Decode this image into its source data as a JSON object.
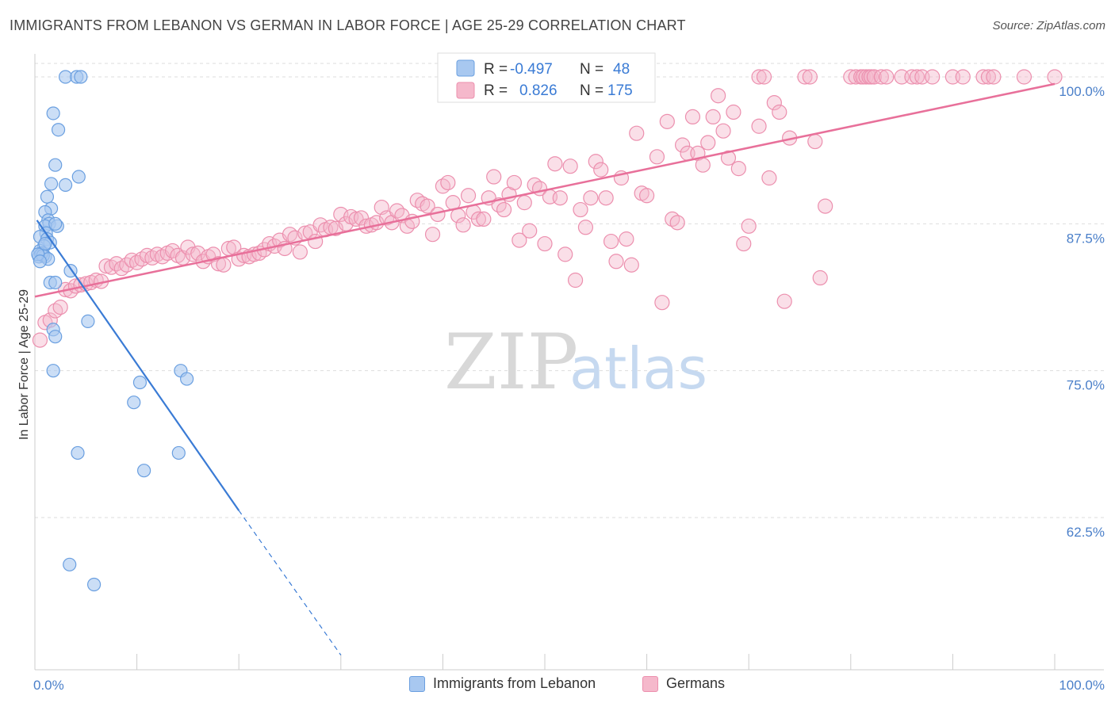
{
  "header": {
    "title": "IMMIGRANTS FROM LEBANON VS GERMAN IN LABOR FORCE | AGE 25-29 CORRELATION CHART",
    "source": "Source: ZipAtlas.com"
  },
  "watermark": {
    "zip": "ZIP",
    "atlas": "atlas"
  },
  "colors": {
    "blue_fill": "#a8c8f0",
    "blue_stroke": "#6a9fe0",
    "blue_line": "#3a7bd5",
    "pink_fill": "#f5b8cb",
    "pink_stroke": "#ec8fae",
    "pink_line": "#e8709a",
    "grid": "#dddddd",
    "tick_text": "#4a7fc9"
  },
  "legend": {
    "blue": {
      "r_label": "R =",
      "r_value": "-0.497",
      "n_label": "N =",
      "n_value": "48"
    },
    "pink": {
      "r_label": "R =",
      "r_value": "0.826",
      "n_label": "N =",
      "n_value": "175"
    }
  },
  "chart_data": {
    "type": "scatter",
    "title": "IMMIGRANTS FROM LEBANON VS GERMAN IN LABOR FORCE | AGE 25-29 CORRELATION CHART",
    "xlabel": "",
    "ylabel": "In Labor Force | Age 25-29",
    "xlim": [
      0,
      100
    ],
    "ylim": [
      50,
      100
    ],
    "x_tick_labels": [
      "0.0%",
      "100.0%"
    ],
    "y_ticks": [
      62.5,
      75.0,
      87.5,
      100.0
    ],
    "y_tick_labels": [
      "62.5%",
      "75.0%",
      "87.5%",
      "100.0%"
    ],
    "grid": true,
    "legend_position": "top-center",
    "series": [
      {
        "name": "Immigrants from Lebanon",
        "color": "#a8c8f0",
        "trend": {
          "x": [
            0.2,
            20.0
          ],
          "y": [
            87.8,
            63.1
          ],
          "extend_to": [
            30.0,
            50.8
          ]
        },
        "points": [
          [
            3.0,
            100.0
          ],
          [
            4.1,
            100.0
          ],
          [
            4.5,
            100.0
          ],
          [
            1.8,
            96.9
          ],
          [
            2.3,
            95.5
          ],
          [
            2.0,
            92.5
          ],
          [
            4.3,
            91.5
          ],
          [
            1.6,
            90.9
          ],
          [
            3.0,
            90.8
          ],
          [
            1.2,
            89.8
          ],
          [
            1.6,
            88.8
          ],
          [
            1.0,
            88.5
          ],
          [
            1.3,
            87.8
          ],
          [
            1.4,
            87.5
          ],
          [
            2.2,
            87.3
          ],
          [
            1.0,
            87.3
          ],
          [
            2.0,
            87.5
          ],
          [
            1.1,
            86.7
          ],
          [
            0.5,
            86.4
          ],
          [
            1.2,
            86.2
          ],
          [
            1.5,
            85.9
          ],
          [
            0.9,
            85.6
          ],
          [
            0.5,
            85.2
          ],
          [
            0.7,
            85.0
          ],
          [
            0.4,
            84.7
          ],
          [
            1.0,
            84.7
          ],
          [
            0.6,
            84.9
          ],
          [
            0.8,
            84.8
          ],
          [
            1.3,
            84.5
          ],
          [
            0.3,
            84.9
          ],
          [
            0.5,
            84.3
          ],
          [
            3.5,
            83.5
          ],
          [
            1.5,
            82.5
          ],
          [
            2.0,
            82.5
          ],
          [
            5.2,
            79.2
          ],
          [
            1.8,
            78.5
          ],
          [
            2.0,
            77.9
          ],
          [
            1.8,
            75.0
          ],
          [
            10.3,
            74.0
          ],
          [
            14.3,
            75.0
          ],
          [
            14.9,
            74.3
          ],
          [
            9.7,
            72.3
          ],
          [
            4.2,
            68.0
          ],
          [
            14.1,
            68.0
          ],
          [
            10.7,
            66.5
          ],
          [
            3.4,
            58.5
          ],
          [
            5.8,
            56.8
          ],
          [
            1.0,
            85.8
          ]
        ]
      },
      {
        "name": "Germans",
        "color": "#f5b8cb",
        "trend": {
          "x": [
            0.0,
            100.0
          ],
          "y": [
            81.3,
            99.4
          ]
        },
        "points": [
          [
            71.0,
            100.0
          ],
          [
            71.5,
            100.0
          ],
          [
            75.5,
            100.0
          ],
          [
            76.0,
            100.0
          ],
          [
            80.0,
            100.0
          ],
          [
            80.5,
            100.0
          ],
          [
            81.0,
            100.0
          ],
          [
            81.2,
            100.0
          ],
          [
            81.5,
            100.0
          ],
          [
            81.8,
            100.0
          ],
          [
            82.0,
            100.0
          ],
          [
            82.3,
            100.0
          ],
          [
            83.0,
            100.0
          ],
          [
            83.5,
            100.0
          ],
          [
            85.0,
            100.0
          ],
          [
            86.0,
            100.0
          ],
          [
            86.5,
            100.0
          ],
          [
            87.0,
            100.0
          ],
          [
            88.0,
            100.0
          ],
          [
            90.0,
            100.0
          ],
          [
            91.0,
            100.0
          ],
          [
            93.0,
            100.0
          ],
          [
            93.5,
            100.0
          ],
          [
            94.0,
            100.0
          ],
          [
            97.0,
            100.0
          ],
          [
            100.0,
            100.0
          ],
          [
            0.5,
            77.6
          ],
          [
            1.0,
            79.1
          ],
          [
            1.5,
            79.3
          ],
          [
            2.0,
            80.1
          ],
          [
            2.5,
            80.4
          ],
          [
            3.0,
            81.9
          ],
          [
            3.5,
            81.8
          ],
          [
            4.0,
            82.2
          ],
          [
            4.5,
            82.3
          ],
          [
            5.0,
            82.4
          ],
          [
            5.5,
            82.5
          ],
          [
            6.0,
            82.7
          ],
          [
            6.5,
            82.6
          ],
          [
            7.0,
            83.9
          ],
          [
            7.5,
            83.8
          ],
          [
            8.0,
            84.1
          ],
          [
            8.5,
            83.7
          ],
          [
            9.0,
            84.0
          ],
          [
            9.5,
            84.4
          ],
          [
            10.0,
            84.2
          ],
          [
            10.5,
            84.5
          ],
          [
            11.0,
            84.8
          ],
          [
            11.5,
            84.6
          ],
          [
            12.0,
            84.9
          ],
          [
            12.5,
            84.7
          ],
          [
            13.0,
            85.0
          ],
          [
            13.5,
            85.2
          ],
          [
            14.0,
            84.8
          ],
          [
            14.5,
            84.6
          ],
          [
            15.0,
            85.5
          ],
          [
            15.5,
            84.9
          ],
          [
            16.0,
            85.0
          ],
          [
            16.5,
            84.3
          ],
          [
            17.0,
            84.7
          ],
          [
            17.5,
            84.9
          ],
          [
            18.0,
            84.1
          ],
          [
            18.5,
            84.0
          ],
          [
            19.0,
            85.4
          ],
          [
            19.5,
            85.5
          ],
          [
            20.0,
            84.5
          ],
          [
            20.5,
            84.8
          ],
          [
            21.0,
            84.7
          ],
          [
            21.5,
            84.9
          ],
          [
            22.0,
            85.0
          ],
          [
            22.5,
            85.3
          ],
          [
            23.0,
            85.8
          ],
          [
            23.5,
            85.6
          ],
          [
            24.0,
            86.1
          ],
          [
            24.5,
            85.4
          ],
          [
            25.0,
            86.6
          ],
          [
            25.5,
            86.3
          ],
          [
            26.0,
            85.1
          ],
          [
            26.5,
            86.7
          ],
          [
            27.0,
            86.8
          ],
          [
            27.5,
            86.0
          ],
          [
            28.0,
            87.4
          ],
          [
            28.5,
            87.0
          ],
          [
            29.0,
            87.2
          ],
          [
            29.5,
            87.1
          ],
          [
            30.0,
            88.3
          ],
          [
            30.5,
            87.5
          ],
          [
            31.0,
            88.1
          ],
          [
            31.5,
            87.9
          ],
          [
            32.0,
            88.0
          ],
          [
            32.5,
            87.3
          ],
          [
            33.0,
            87.4
          ],
          [
            33.5,
            87.6
          ],
          [
            34.0,
            88.9
          ],
          [
            34.5,
            88.0
          ],
          [
            35.0,
            87.6
          ],
          [
            35.5,
            88.6
          ],
          [
            36.0,
            88.2
          ],
          [
            36.5,
            87.3
          ],
          [
            37.0,
            87.7
          ],
          [
            37.5,
            89.5
          ],
          [
            38.0,
            89.2
          ],
          [
            38.5,
            89.0
          ],
          [
            39.0,
            86.6
          ],
          [
            39.5,
            88.3
          ],
          [
            40.0,
            90.7
          ],
          [
            40.5,
            91.0
          ],
          [
            41.0,
            89.3
          ],
          [
            41.5,
            88.2
          ],
          [
            42.0,
            87.4
          ],
          [
            42.5,
            89.9
          ],
          [
            43.0,
            88.5
          ],
          [
            43.5,
            87.9
          ],
          [
            44.0,
            87.9
          ],
          [
            44.5,
            89.7
          ],
          [
            45.0,
            91.5
          ],
          [
            45.5,
            89.1
          ],
          [
            46.0,
            88.7
          ],
          [
            46.5,
            90.0
          ],
          [
            47.0,
            91.0
          ],
          [
            47.5,
            86.1
          ],
          [
            48.0,
            89.3
          ],
          [
            48.5,
            86.9
          ],
          [
            49.0,
            90.8
          ],
          [
            49.5,
            90.5
          ],
          [
            50.0,
            85.8
          ],
          [
            50.5,
            89.8
          ],
          [
            51.0,
            92.6
          ],
          [
            51.5,
            89.7
          ],
          [
            52.0,
            84.9
          ],
          [
            52.5,
            92.4
          ],
          [
            53.0,
            82.7
          ],
          [
            53.5,
            88.7
          ],
          [
            54.0,
            87.2
          ],
          [
            54.5,
            89.7
          ],
          [
            55.0,
            92.8
          ],
          [
            55.5,
            92.1
          ],
          [
            56.0,
            89.7
          ],
          [
            56.5,
            86.0
          ],
          [
            57.0,
            84.3
          ],
          [
            57.5,
            91.4
          ],
          [
            58.0,
            86.2
          ],
          [
            58.5,
            84.0
          ],
          [
            59.0,
            95.2
          ],
          [
            59.5,
            90.1
          ],
          [
            60.0,
            89.9
          ],
          [
            61.0,
            93.2
          ],
          [
            61.5,
            80.8
          ],
          [
            62.0,
            96.2
          ],
          [
            62.5,
            87.9
          ],
          [
            63.0,
            87.6
          ],
          [
            63.5,
            94.2
          ],
          [
            64.0,
            93.5
          ],
          [
            64.5,
            96.6
          ],
          [
            65.0,
            93.5
          ],
          [
            65.5,
            92.5
          ],
          [
            66.0,
            94.4
          ],
          [
            66.5,
            96.6
          ],
          [
            67.0,
            98.4
          ],
          [
            67.5,
            95.4
          ],
          [
            68.0,
            93.1
          ],
          [
            68.5,
            97.0
          ],
          [
            69.0,
            92.2
          ],
          [
            69.5,
            85.8
          ],
          [
            70.0,
            87.3
          ],
          [
            71.0,
            95.8
          ],
          [
            72.0,
            91.4
          ],
          [
            72.5,
            97.8
          ],
          [
            73.0,
            97.0
          ],
          [
            73.5,
            80.9
          ],
          [
            74.0,
            94.8
          ],
          [
            76.5,
            94.5
          ],
          [
            77.0,
            82.9
          ],
          [
            77.5,
            89.0
          ]
        ]
      }
    ]
  },
  "bottom_legend": {
    "blue_label": "Immigrants from Lebanon",
    "pink_label": "Germans"
  }
}
